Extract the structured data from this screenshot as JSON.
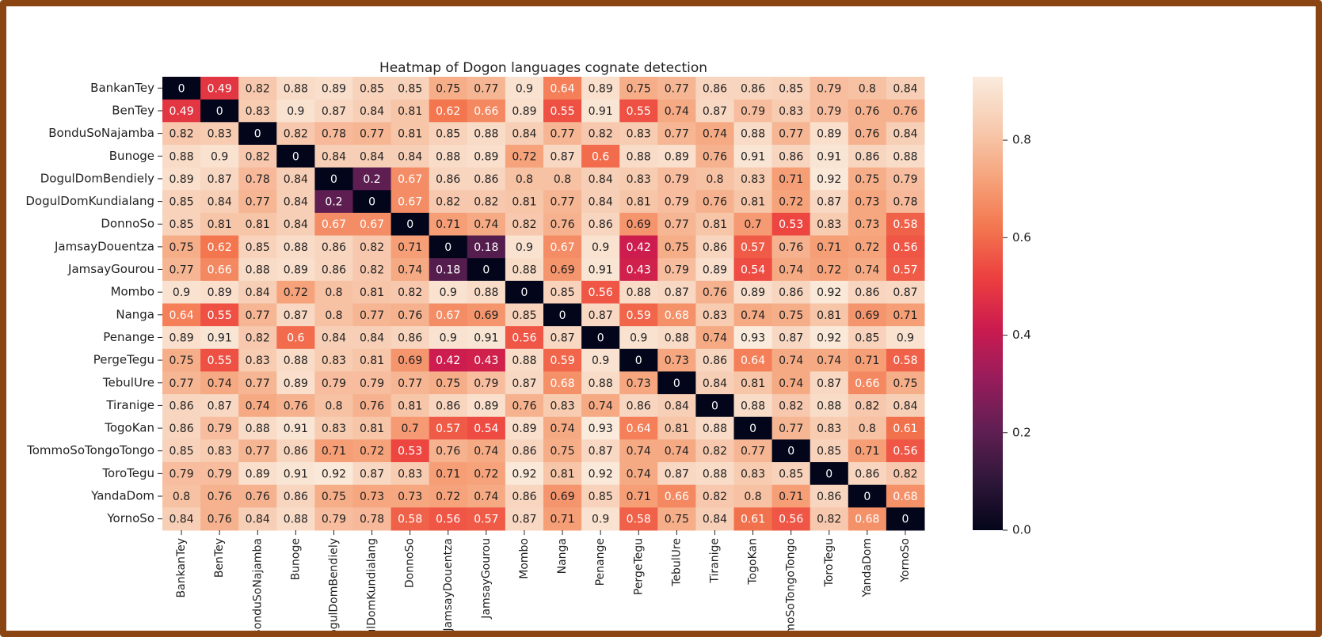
{
  "chart_data": {
    "type": "heatmap",
    "title": "Heatmap of Dogon languages cognate detection",
    "x": [
      "BankanTey",
      "BenTey",
      "BonduSoNajamba",
      "Bunoge",
      "DogulDomBendiely",
      "DogulDomKundialang",
      "DonnoSo",
      "JamsayDouentza",
      "JamsayGourou",
      "Mombo",
      "Nanga",
      "Penange",
      "PergeTegu",
      "TebulUre",
      "Tiranige",
      "TogoKan",
      "TommoSoTongoTongo",
      "ToroTegu",
      "YandaDom",
      "YornoSo"
    ],
    "y": [
      "BankanTey",
      "BenTey",
      "BonduSoNajamba",
      "Bunoge",
      "DogulDomBendiely",
      "DogulDomKundialang",
      "DonnoSo",
      "JamsayDouentza",
      "JamsayGourou",
      "Mombo",
      "Nanga",
      "Penange",
      "PergeTegu",
      "TebulUre",
      "Tiranige",
      "TogoKan",
      "TommoSoTongoTongo",
      "ToroTegu",
      "YandaDom",
      "YornoSo"
    ],
    "values": [
      [
        0,
        0.49,
        0.82,
        0.88,
        0.89,
        0.85,
        0.85,
        0.75,
        0.77,
        0.9,
        0.64,
        0.89,
        0.75,
        0.77,
        0.86,
        0.86,
        0.85,
        0.79,
        0.8,
        0.84
      ],
      [
        0.49,
        0,
        0.83,
        0.9,
        0.87,
        0.84,
        0.81,
        0.62,
        0.66,
        0.89,
        0.55,
        0.91,
        0.55,
        0.74,
        0.87,
        0.79,
        0.83,
        0.79,
        0.76,
        0.76
      ],
      [
        0.82,
        0.83,
        0,
        0.82,
        0.78,
        0.77,
        0.81,
        0.85,
        0.88,
        0.84,
        0.77,
        0.82,
        0.83,
        0.77,
        0.74,
        0.88,
        0.77,
        0.89,
        0.76,
        0.84
      ],
      [
        0.88,
        0.9,
        0.82,
        0,
        0.84,
        0.84,
        0.84,
        0.88,
        0.89,
        0.72,
        0.87,
        0.6,
        0.88,
        0.89,
        0.76,
        0.91,
        0.86,
        0.91,
        0.86,
        0.88
      ],
      [
        0.89,
        0.87,
        0.78,
        0.84,
        0,
        0.2,
        0.67,
        0.86,
        0.86,
        0.8,
        0.8,
        0.84,
        0.83,
        0.79,
        0.8,
        0.83,
        0.71,
        0.92,
        0.75,
        0.79
      ],
      [
        0.85,
        0.84,
        0.77,
        0.84,
        0.2,
        0,
        0.67,
        0.82,
        0.82,
        0.81,
        0.77,
        0.84,
        0.81,
        0.79,
        0.76,
        0.81,
        0.72,
        0.87,
        0.73,
        0.78
      ],
      [
        0.85,
        0.81,
        0.81,
        0.84,
        0.67,
        0.67,
        0,
        0.71,
        0.74,
        0.82,
        0.76,
        0.86,
        0.69,
        0.77,
        0.81,
        0.7,
        0.53,
        0.83,
        0.73,
        0.58
      ],
      [
        0.75,
        0.62,
        0.85,
        0.88,
        0.86,
        0.82,
        0.71,
        0,
        0.18,
        0.9,
        0.67,
        0.9,
        0.42,
        0.75,
        0.86,
        0.57,
        0.76,
        0.71,
        0.72,
        0.56
      ],
      [
        0.77,
        0.66,
        0.88,
        0.89,
        0.86,
        0.82,
        0.74,
        0.18,
        0,
        0.88,
        0.69,
        0.91,
        0.43,
        0.79,
        0.89,
        0.54,
        0.74,
        0.72,
        0.74,
        0.57
      ],
      [
        0.9,
        0.89,
        0.84,
        0.72,
        0.8,
        0.81,
        0.82,
        0.9,
        0.88,
        0,
        0.85,
        0.56,
        0.88,
        0.87,
        0.76,
        0.89,
        0.86,
        0.92,
        0.86,
        0.87
      ],
      [
        0.64,
        0.55,
        0.77,
        0.87,
        0.8,
        0.77,
        0.76,
        0.67,
        0.69,
        0.85,
        0,
        0.87,
        0.59,
        0.68,
        0.83,
        0.74,
        0.75,
        0.81,
        0.69,
        0.71
      ],
      [
        0.89,
        0.91,
        0.82,
        0.6,
        0.84,
        0.84,
        0.86,
        0.9,
        0.91,
        0.56,
        0.87,
        0,
        0.9,
        0.88,
        0.74,
        0.93,
        0.87,
        0.92,
        0.85,
        0.9
      ],
      [
        0.75,
        0.55,
        0.83,
        0.88,
        0.83,
        0.81,
        0.69,
        0.42,
        0.43,
        0.88,
        0.59,
        0.9,
        0,
        0.73,
        0.86,
        0.64,
        0.74,
        0.74,
        0.71,
        0.58
      ],
      [
        0.77,
        0.74,
        0.77,
        0.89,
        0.79,
        0.79,
        0.77,
        0.75,
        0.79,
        0.87,
        0.68,
        0.88,
        0.73,
        0,
        0.84,
        0.81,
        0.74,
        0.87,
        0.66,
        0.75
      ],
      [
        0.86,
        0.87,
        0.74,
        0.76,
        0.8,
        0.76,
        0.81,
        0.86,
        0.89,
        0.76,
        0.83,
        0.74,
        0.86,
        0.84,
        0,
        0.88,
        0.82,
        0.88,
        0.82,
        0.84
      ],
      [
        0.86,
        0.79,
        0.88,
        0.91,
        0.83,
        0.81,
        0.7,
        0.57,
        0.54,
        0.89,
        0.74,
        0.93,
        0.64,
        0.81,
        0.88,
        0,
        0.77,
        0.83,
        0.8,
        0.61
      ],
      [
        0.85,
        0.83,
        0.77,
        0.86,
        0.71,
        0.72,
        0.53,
        0.76,
        0.74,
        0.86,
        0.75,
        0.87,
        0.74,
        0.74,
        0.82,
        0.77,
        0,
        0.85,
        0.71,
        0.56
      ],
      [
        0.79,
        0.79,
        0.89,
        0.91,
        0.92,
        0.87,
        0.83,
        0.71,
        0.72,
        0.92,
        0.81,
        0.92,
        0.74,
        0.87,
        0.88,
        0.83,
        0.85,
        0,
        0.86,
        0.82
      ],
      [
        0.8,
        0.76,
        0.76,
        0.86,
        0.75,
        0.73,
        0.73,
        0.72,
        0.74,
        0.86,
        0.69,
        0.85,
        0.71,
        0.66,
        0.82,
        0.8,
        0.71,
        0.86,
        0,
        0.68
      ],
      [
        0.84,
        0.76,
        0.84,
        0.88,
        0.79,
        0.78,
        0.58,
        0.56,
        0.57,
        0.87,
        0.71,
        0.9,
        0.58,
        0.75,
        0.84,
        0.61,
        0.56,
        0.82,
        0.68,
        0
      ]
    ],
    "vlim": [
      0,
      0.93
    ],
    "cticks": [
      {
        "value": 0,
        "label": "0.0"
      },
      0.2,
      0.4,
      0.6,
      0.8
    ],
    "colorscale": [
      "#03051a",
      "#30173a",
      "#611f53",
      "#971c5b",
      "#cb1b4f",
      "#ec3f3f",
      "#f3764f",
      "#f6a47c",
      "#f7cbb0",
      "#faebdd"
    ]
  }
}
